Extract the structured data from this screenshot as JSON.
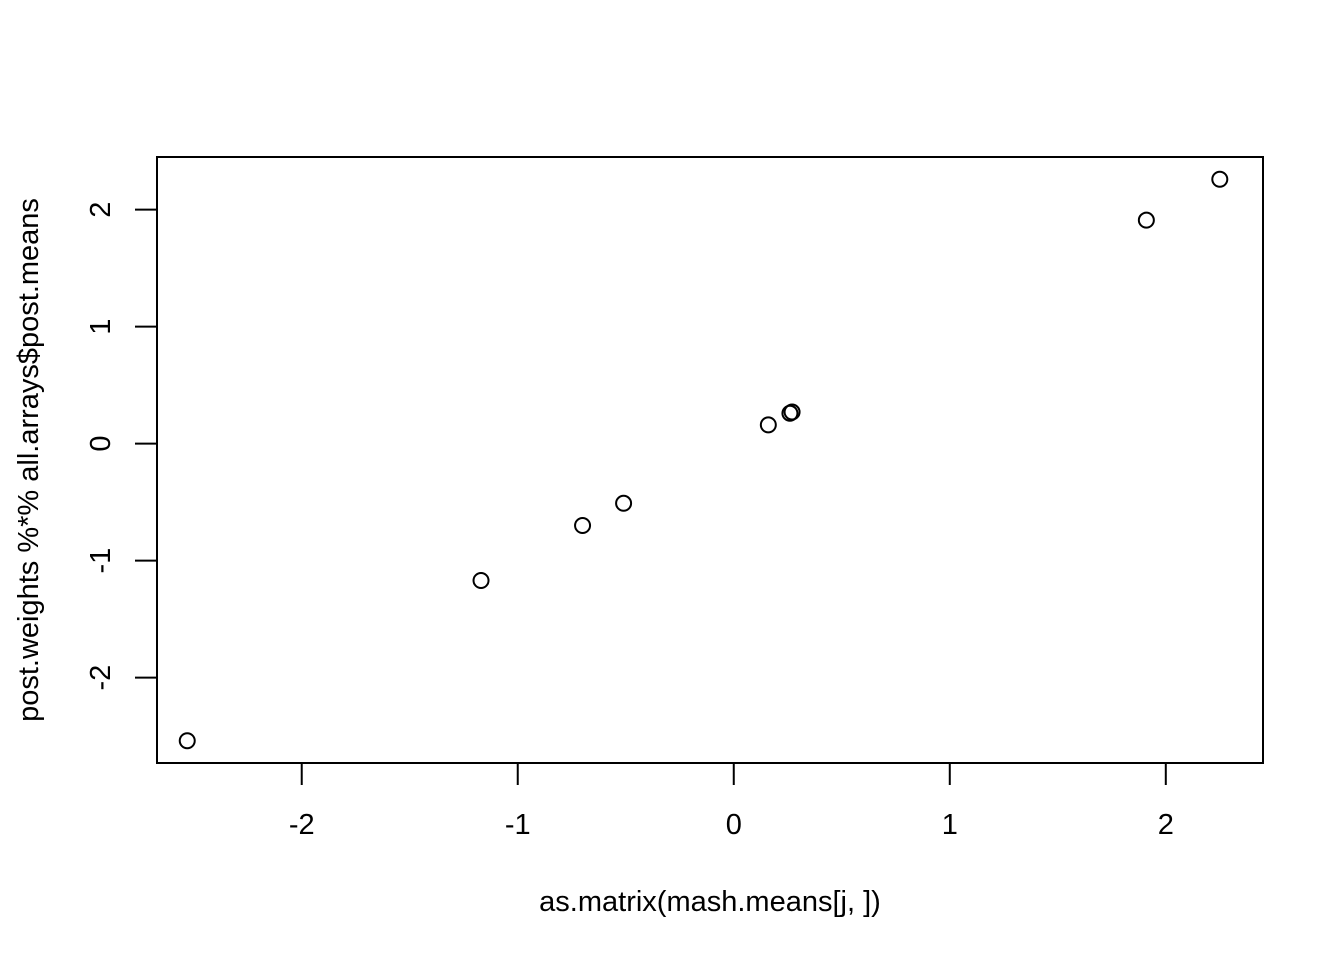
{
  "chart_data": {
    "type": "scatter",
    "title": "",
    "xlabel": "as.matrix(mash.means[j, ])",
    "ylabel": "post.weights %*% all.arrays$post.means",
    "xlim": [
      -2.67,
      2.45
    ],
    "ylim": [
      -2.73,
      2.45
    ],
    "xticks": [
      -2,
      -1,
      0,
      1,
      2
    ],
    "yticks": [
      -2,
      -1,
      0,
      1,
      2
    ],
    "xtick_labels": [
      "-2",
      "-1",
      "0",
      "1",
      "2"
    ],
    "ytick_labels": [
      "-2",
      "-1",
      "0",
      "1",
      "2"
    ],
    "grid": false,
    "marker": "open-circle",
    "color": "#000000",
    "points": [
      {
        "x": -2.53,
        "y": -2.54
      },
      {
        "x": -1.17,
        "y": -1.17
      },
      {
        "x": -0.7,
        "y": -0.7
      },
      {
        "x": -0.51,
        "y": -0.51
      },
      {
        "x": 0.16,
        "y": 0.16
      },
      {
        "x": 0.26,
        "y": 0.26
      },
      {
        "x": 0.27,
        "y": 0.27
      },
      {
        "x": 1.91,
        "y": 1.91
      },
      {
        "x": 2.25,
        "y": 2.26
      }
    ]
  }
}
